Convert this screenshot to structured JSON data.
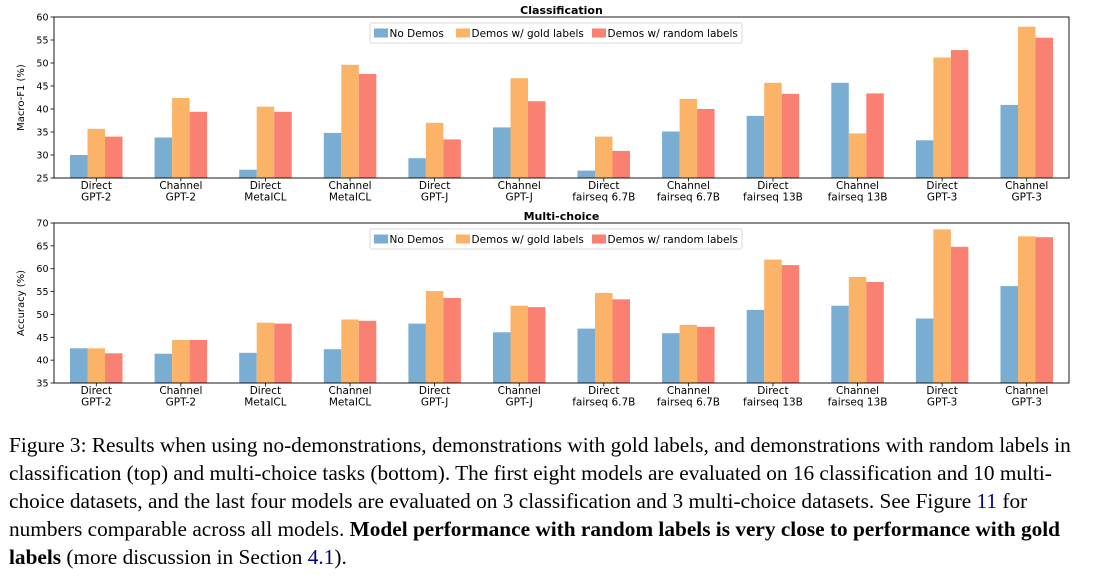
{
  "colors": {
    "no_demos": "#7aadd2",
    "gold": "#fbb467",
    "random": "#fa8072",
    "link": "#00008b"
  },
  "chart_data": [
    {
      "type": "bar",
      "title": "Classification",
      "ylabel": "Macro-F1 (%)",
      "xlabel": "",
      "ylim": [
        25,
        60
      ],
      "yticks": [
        25,
        30,
        35,
        40,
        45,
        50,
        55,
        60
      ],
      "grid": false,
      "legend_position": "top-center",
      "categories": [
        [
          "Direct",
          "GPT-2"
        ],
        [
          "Channel",
          "GPT-2"
        ],
        [
          "Direct",
          "MetaICL"
        ],
        [
          "Channel",
          "MetaICL"
        ],
        [
          "Direct",
          "GPT-J"
        ],
        [
          "Channel",
          "GPT-J"
        ],
        [
          "Direct",
          "fairseq 6.7B"
        ],
        [
          "Channel",
          "fairseq 6.7B"
        ],
        [
          "Direct",
          "fairseq 13B"
        ],
        [
          "Channel",
          "fairseq 13B"
        ],
        [
          "Direct",
          "GPT-3"
        ],
        [
          "Channel",
          "GPT-3"
        ]
      ],
      "series": [
        {
          "name": "No Demos",
          "color_key": "no_demos",
          "values": [
            30.0,
            33.8,
            26.8,
            34.8,
            29.3,
            36.0,
            26.6,
            35.1,
            38.5,
            45.7,
            33.2,
            40.9
          ]
        },
        {
          "name": "Demos w/ gold labels",
          "color_key": "gold",
          "values": [
            35.7,
            42.4,
            40.5,
            49.6,
            37.0,
            46.7,
            34.0,
            42.2,
            45.7,
            34.7,
            51.2,
            57.9
          ]
        },
        {
          "name": "Demos w/ random labels",
          "color_key": "random",
          "values": [
            34.0,
            39.4,
            39.4,
            47.6,
            33.4,
            41.7,
            30.9,
            40.0,
            43.3,
            43.4,
            52.8,
            55.5
          ]
        }
      ]
    },
    {
      "type": "bar",
      "title": "Multi-choice",
      "ylabel": "Accuracy (%)",
      "xlabel": "",
      "ylim": [
        35,
        70
      ],
      "yticks": [
        35,
        40,
        45,
        50,
        55,
        60,
        65,
        70
      ],
      "grid": false,
      "legend_position": "top-center",
      "categories": [
        [
          "Direct",
          "GPT-2"
        ],
        [
          "Channel",
          "GPT-2"
        ],
        [
          "Direct",
          "MetaICL"
        ],
        [
          "Channel",
          "MetaICL"
        ],
        [
          "Direct",
          "GPT-J"
        ],
        [
          "Channel",
          "GPT-J"
        ],
        [
          "Direct",
          "fairseq 6.7B"
        ],
        [
          "Channel",
          "fairseq 6.7B"
        ],
        [
          "Direct",
          "fairseq 13B"
        ],
        [
          "Channel",
          "fairseq 13B"
        ],
        [
          "Direct",
          "GPT-3"
        ],
        [
          "Channel",
          "GPT-3"
        ]
      ],
      "series": [
        {
          "name": "No Demos",
          "color_key": "no_demos",
          "values": [
            42.6,
            41.4,
            41.6,
            42.4,
            48.0,
            46.1,
            46.9,
            45.9,
            51.0,
            51.9,
            49.1,
            56.2
          ]
        },
        {
          "name": "Demos w/ gold labels",
          "color_key": "gold",
          "values": [
            42.6,
            44.4,
            48.2,
            48.9,
            55.1,
            51.9,
            54.7,
            47.7,
            62.0,
            58.2,
            68.6,
            67.1
          ]
        },
        {
          "name": "Demos w/ random labels",
          "color_key": "random",
          "values": [
            41.5,
            44.4,
            48.0,
            48.6,
            53.6,
            51.6,
            53.3,
            47.3,
            60.8,
            57.1,
            64.8,
            66.9
          ]
        }
      ]
    }
  ],
  "caption": {
    "label": "Figure 3:",
    "text1": " Results when using no-demonstrations, demonstrations with gold labels, and demonstrations with random labels in classification (top) and multi-choice tasks (bottom). The first eight models are evaluated on 16 classification and 10 multi-choice datasets, and the last four models are evaluated on 3 classification and 3 multi-choice datasets. See Figure ",
    "figure_ref": "11",
    "text2": " for numbers comparable across all models. ",
    "bold": "Model performance with random labels is very close to performance with gold labels",
    "text3": " (more discussion in Section ",
    "section_ref": "4.1",
    "text4": ")."
  }
}
